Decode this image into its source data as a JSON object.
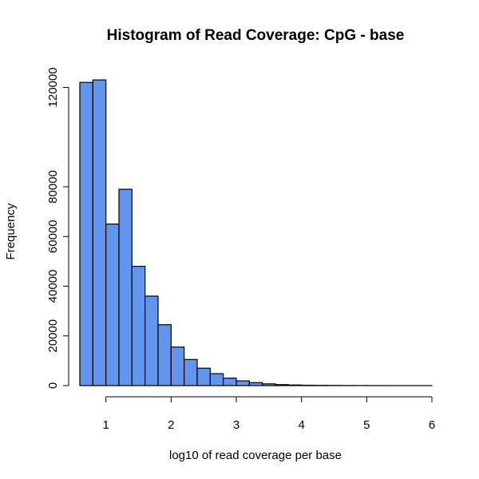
{
  "chart_data": {
    "type": "bar",
    "title": "Histogram of Read Coverage: CpG - base",
    "xlabel": "log10 of read coverage per base",
    "ylabel": "Frequency",
    "bar_color": "#6495ED",
    "xlim": [
      0.6,
      6.0
    ],
    "ylim": [
      0,
      124000
    ],
    "x_ticks": [
      1,
      2,
      3,
      4,
      5,
      6
    ],
    "y_ticks": [
      0,
      20000,
      40000,
      60000,
      80000,
      120000
    ],
    "bin_width": 0.2,
    "bins_start": [
      0.6,
      0.8,
      1.0,
      1.2,
      1.4,
      1.6,
      1.8,
      2.0,
      2.2,
      2.4,
      2.6,
      2.8,
      3.0,
      3.2,
      3.4,
      3.6,
      3.8,
      4.0,
      4.2,
      4.4,
      4.6,
      4.8,
      5.0,
      5.2,
      5.4,
      5.6,
      5.8
    ],
    "values": [
      122000,
      123000,
      65000,
      79000,
      48000,
      36000,
      24500,
      15500,
      10500,
      7000,
      4800,
      3000,
      1900,
      1200,
      700,
      400,
      250,
      150,
      100,
      60,
      40,
      25,
      15,
      10,
      8,
      5,
      3
    ],
    "grid": false,
    "legend": "none"
  }
}
